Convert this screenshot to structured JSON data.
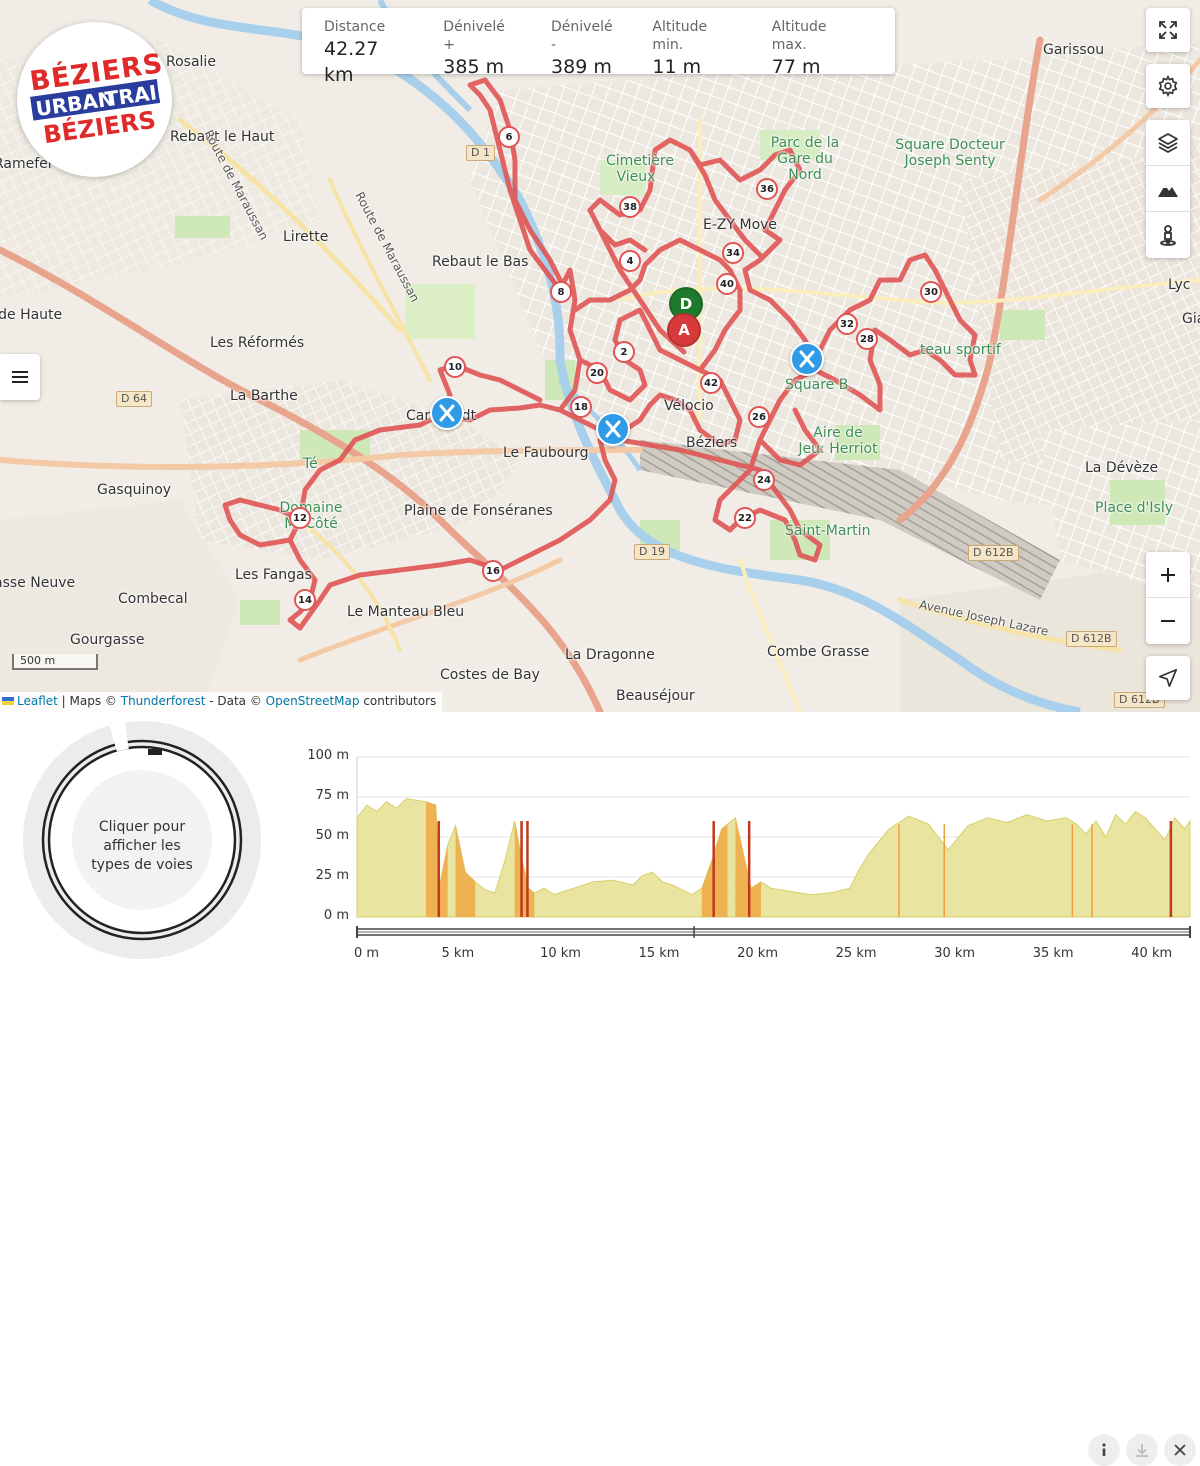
{
  "stats": [
    {
      "label": "Distance",
      "value": "42.27 km"
    },
    {
      "label": "Dénivelé +",
      "value": "385 m"
    },
    {
      "label": "Dénivelé -",
      "value": "389 m"
    },
    {
      "label": "Altitude min.",
      "value": "11 m"
    },
    {
      "label": "Altitude max.",
      "value": "77 m"
    }
  ],
  "logo": {
    "line1": "BÉZIERS",
    "line2": "URBAN",
    "line3": "TRAIL",
    "line4": "BÉZIERS"
  },
  "map": {
    "places": [
      {
        "name": "Rosalie",
        "cls": ""
      },
      {
        "name": "Rebaut le Haut",
        "cls": ""
      },
      {
        "name": "Ramefer",
        "cls": ""
      },
      {
        "name": "Lirette",
        "cls": ""
      },
      {
        "name": "Rebaut le Bas",
        "cls": ""
      },
      {
        "name": "Garissou",
        "cls": ""
      },
      {
        "name": "Parc de la Gare du Nord",
        "cls": "park"
      },
      {
        "name": "Square Docteur Joseph Senty",
        "cls": "park"
      },
      {
        "name": "Cimetière Vieux",
        "cls": "park"
      },
      {
        "name": "E-ZY Move",
        "cls": ""
      },
      {
        "name": "Lyc",
        "cls": ""
      },
      {
        "name": "Gia",
        "cls": ""
      },
      {
        "name": "Ide Haute",
        "cls": ""
      },
      {
        "name": "Les Réformés",
        "cls": ""
      },
      {
        "name": "La Barthe",
        "cls": ""
      },
      {
        "name": "Le Faubourg",
        "cls": ""
      },
      {
        "name": "Béziers",
        "cls": ""
      },
      {
        "name": "Aire de Jeu: Herriot",
        "cls": "park"
      },
      {
        "name": "La Dévèze",
        "cls": ""
      },
      {
        "name": "Place d'Isly",
        "cls": "park"
      },
      {
        "name": "Gasquinoy",
        "cls": ""
      },
      {
        "name": "Plaine de Fonséranes",
        "cls": ""
      },
      {
        "name": "Domaine Mi-Côté",
        "cls": "park"
      },
      {
        "name": "asse Neuve",
        "cls": ""
      },
      {
        "name": "Les Fangas",
        "cls": ""
      },
      {
        "name": "Combecal",
        "cls": ""
      },
      {
        "name": "Le Manteau Bleu",
        "cls": ""
      },
      {
        "name": "Gourgasse",
        "cls": ""
      },
      {
        "name": "La Dragonne",
        "cls": ""
      },
      {
        "name": "Combe Grasse",
        "cls": ""
      },
      {
        "name": "Costes de Bay",
        "cls": ""
      },
      {
        "name": "Beauséjour",
        "cls": ""
      },
      {
        "name": "Avenue Joseph Lazare",
        "cls": "sm"
      },
      {
        "name": "Route de Maraussan",
        "cls": "sm"
      },
      {
        "name": "Route de Maraussan",
        "cls": "sm"
      },
      {
        "name": "Carrédudt",
        "cls": ""
      },
      {
        "name": "Square B.",
        "cls": "park"
      },
      {
        "name": "teau sportif",
        "cls": "park"
      },
      {
        "name": "Vélocio",
        "cls": ""
      },
      {
        "name": "Té",
        "cls": "park"
      },
      {
        "name": "Saint-Martin",
        "cls": "park"
      }
    ],
    "roads": [
      "D 1",
      "D 64",
      "D 19",
      "D 612B",
      "D 612B",
      "D 612B"
    ],
    "km_markers": [
      "6",
      "38",
      "36",
      "34",
      "4",
      "40",
      "8",
      "30",
      "32",
      "28",
      "2",
      "10",
      "20",
      "42",
      "18",
      "26",
      "24",
      "22",
      "12",
      "16",
      "14"
    ],
    "start_label": "D",
    "end_label": "A",
    "scale_label": "500 m",
    "attribution": {
      "leaflet": "Leaflet",
      "sep1": " | Maps © ",
      "tf": "Thunderforest",
      "sep2": " - Data © ",
      "osm": "OpenStreetMap",
      "tail": " contributors"
    },
    "colors": {
      "route": "#e05555",
      "start": "#1e7a2c",
      "end": "#d63a3a",
      "aid": "#2f9ae6"
    }
  },
  "controls": [
    "fullscreen-icon",
    "settings-icon",
    "layers-icon",
    "elevation-icon",
    "streetview-icon",
    "zoom-in-icon",
    "zoom-out-icon",
    "locate-icon"
  ],
  "panel": {
    "donut_text": "Cliquer pour afficher les types de voies",
    "y_ticks": [
      "100 m",
      "75 m",
      "50 m",
      "25 m",
      "0 m"
    ],
    "x_ticks": [
      "0 m",
      "5 km",
      "10 km",
      "15 km",
      "20 km",
      "25 km",
      "30 km",
      "35 km",
      "40 km"
    ]
  },
  "chart_data": {
    "type": "area",
    "xlabel": "",
    "ylabel": "",
    "x_unit": "km",
    "y_unit": "m",
    "xlim": [
      0,
      42.27
    ],
    "ylim": [
      0,
      100
    ],
    "series": [
      {
        "x": [
          0,
          0.5,
          1,
          1.5,
          2,
          2.5,
          3,
          3.5,
          4,
          4.2,
          4.6,
          5,
          5.5,
          6,
          6.5,
          7,
          7.5,
          8,
          8.3,
          8.7,
          9,
          9.5,
          10,
          11,
          12,
          13,
          14,
          14.5,
          15,
          15.5,
          16,
          16.5,
          17,
          17.5,
          18,
          18.5,
          18.8,
          19.2,
          19.6,
          20,
          20.5,
          21,
          22,
          23,
          24,
          25,
          25.5,
          26,
          27,
          28,
          29,
          29.5,
          30,
          31,
          32,
          33,
          34,
          35,
          36,
          36.5,
          37,
          37.5,
          38,
          38.5,
          39,
          39.5,
          40,
          40.5,
          41,
          41.5,
          42,
          42.27
        ],
        "y": [
          62,
          70,
          66,
          72,
          68,
          74,
          73,
          72,
          70,
          20,
          45,
          57,
          28,
          22,
          17,
          15,
          35,
          60,
          40,
          18,
          15,
          18,
          14,
          18,
          22,
          23,
          20,
          26,
          28,
          22,
          20,
          17,
          14,
          18,
          35,
          55,
          58,
          62,
          40,
          18,
          22,
          18,
          16,
          14,
          15,
          18,
          30,
          40,
          55,
          63,
          58,
          50,
          42,
          57,
          62,
          59,
          64,
          60,
          62,
          58,
          52,
          60,
          50,
          64,
          58,
          66,
          62,
          55,
          48,
          62,
          55,
          60
        ]
      }
    ]
  }
}
